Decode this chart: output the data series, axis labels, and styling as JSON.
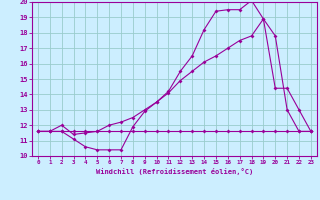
{
  "bg_color": "#cceeff",
  "line_color": "#990099",
  "grid_color": "#99cccc",
  "xlabel": "Windchill (Refroidissement éolien,°C)",
  "xlabel_color": "#990099",
  "xlim": [
    -0.5,
    23.5
  ],
  "ylim": [
    10,
    20
  ],
  "yticks": [
    10,
    11,
    12,
    13,
    14,
    15,
    16,
    17,
    18,
    19,
    20
  ],
  "xticks": [
    0,
    1,
    2,
    3,
    4,
    5,
    6,
    7,
    8,
    9,
    10,
    11,
    12,
    13,
    14,
    15,
    16,
    17,
    18,
    19,
    20,
    21,
    22,
    23
  ],
  "line1_x": [
    0,
    1,
    2,
    3,
    4,
    5,
    6,
    7,
    8,
    9,
    10,
    11,
    12,
    13,
    14,
    15,
    16,
    17,
    18,
    19,
    20,
    21,
    22,
    23
  ],
  "line1_y": [
    11.6,
    11.6,
    11.6,
    11.6,
    11.6,
    11.6,
    11.6,
    11.6,
    11.6,
    11.6,
    11.6,
    11.6,
    11.6,
    11.6,
    11.6,
    11.6,
    11.6,
    11.6,
    11.6,
    11.6,
    11.6,
    11.6,
    11.6,
    11.6
  ],
  "line2_x": [
    0,
    1,
    2,
    3,
    4,
    5,
    6,
    7,
    8,
    9,
    10,
    11,
    12,
    13,
    14,
    15,
    16,
    17,
    18,
    19,
    20,
    21,
    22,
    23
  ],
  "line2_y": [
    11.6,
    11.6,
    11.6,
    11.1,
    10.6,
    10.4,
    10.4,
    10.4,
    11.9,
    12.9,
    13.5,
    14.2,
    15.5,
    16.5,
    18.2,
    19.4,
    19.5,
    19.5,
    20.1,
    18.9,
    14.4,
    14.4,
    13.0,
    11.6
  ],
  "line3_x": [
    0,
    1,
    2,
    3,
    4,
    5,
    6,
    7,
    8,
    9,
    10,
    11,
    12,
    13,
    14,
    15,
    16,
    17,
    18,
    19,
    20,
    21,
    22,
    23
  ],
  "line3_y": [
    11.6,
    11.6,
    12.0,
    11.4,
    11.5,
    11.6,
    12.0,
    12.2,
    12.5,
    13.0,
    13.5,
    14.1,
    14.9,
    15.5,
    16.1,
    16.5,
    17.0,
    17.5,
    17.8,
    18.9,
    17.8,
    13.0,
    11.6,
    11.6
  ]
}
